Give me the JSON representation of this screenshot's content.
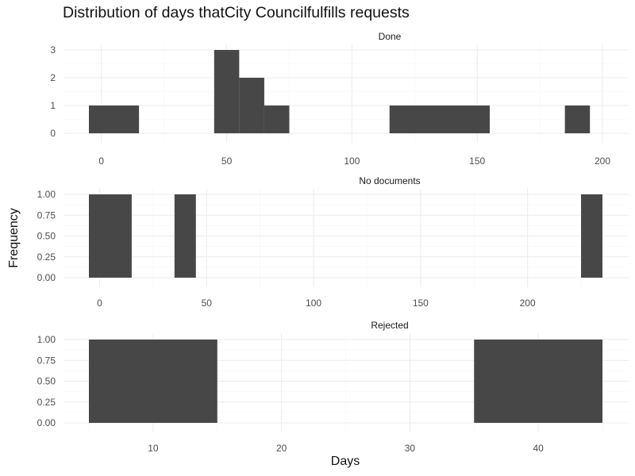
{
  "chart_data": {
    "type": "bar",
    "title": "Distribution of days thatCity Councilfulfills requests",
    "xlabel": "Days",
    "ylabel": "Frequency",
    "grid": true,
    "facets": [
      {
        "name": "Done",
        "xlim": [
          -5,
          200
        ],
        "x_ticks": [
          0,
          50,
          100,
          150,
          200
        ],
        "y_ticks": [
          0,
          1,
          2,
          3
        ],
        "ylim": [
          0,
          3
        ],
        "bins": [
          {
            "x0": -5,
            "x1": 15,
            "count": 1
          },
          {
            "x0": 45,
            "x1": 55,
            "count": 3
          },
          {
            "x0": 55,
            "x1": 65,
            "count": 2
          },
          {
            "x0": 65,
            "x1": 75,
            "count": 1
          },
          {
            "x0": 115,
            "x1": 155,
            "count": 1
          },
          {
            "x0": 185,
            "x1": 195,
            "count": 1
          }
        ]
      },
      {
        "name": "No documents",
        "xlim": [
          -5,
          235
        ],
        "x_ticks": [
          0,
          50,
          100,
          150,
          200
        ],
        "y_ticks": [
          "0.00",
          "0.25",
          "0.50",
          "0.75",
          "1.00"
        ],
        "ylim": [
          0,
          1
        ],
        "bins": [
          {
            "x0": -5,
            "x1": 15,
            "count": 1
          },
          {
            "x0": 35,
            "x1": 45,
            "count": 1
          },
          {
            "x0": 225,
            "x1": 235,
            "count": 1
          }
        ]
      },
      {
        "name": "Rejected",
        "xlim": [
          5,
          45
        ],
        "x_ticks": [
          10,
          20,
          30,
          40
        ],
        "y_ticks": [
          "0.00",
          "0.25",
          "0.50",
          "0.75",
          "1.00"
        ],
        "ylim": [
          0,
          1
        ],
        "bins": [
          {
            "x0": 5,
            "x1": 15,
            "count": 1
          },
          {
            "x0": 35,
            "x1": 45,
            "count": 1
          }
        ]
      }
    ]
  },
  "colors": {
    "bar": "#474747",
    "grid_major": "#ebebeb",
    "grid_minor": "#f5f5f5",
    "text": "#4d4d4d"
  }
}
